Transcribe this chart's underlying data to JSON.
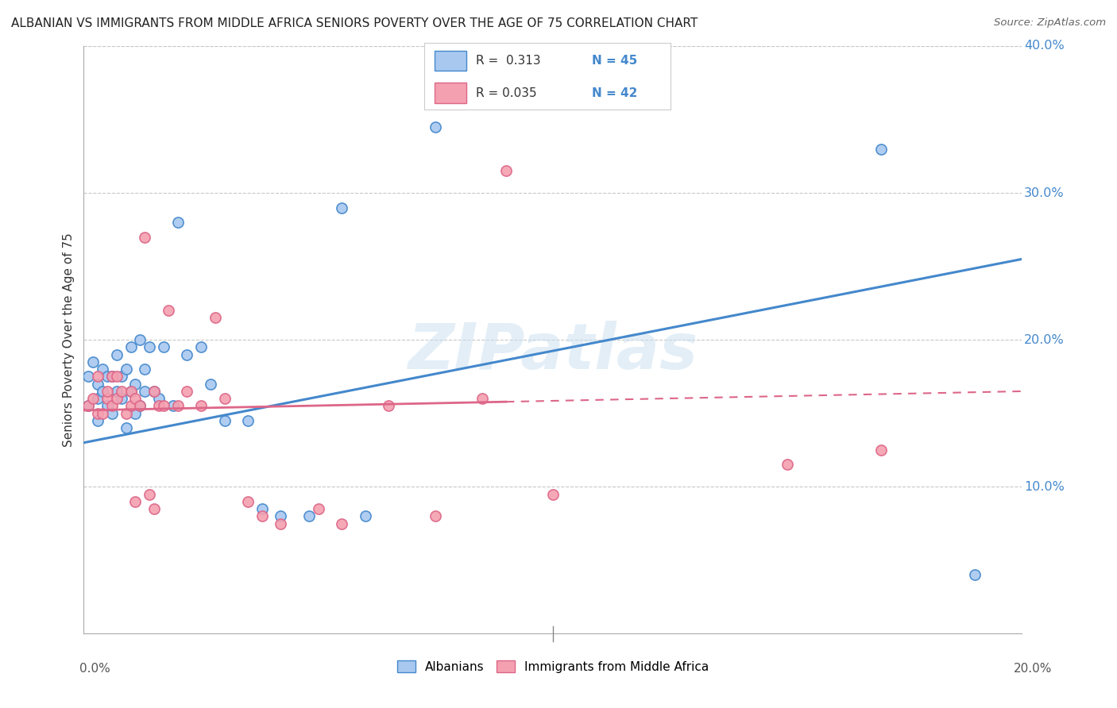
{
  "title": "ALBANIAN VS IMMIGRANTS FROM MIDDLE AFRICA SENIORS POVERTY OVER THE AGE OF 75 CORRELATION CHART",
  "source": "Source: ZipAtlas.com",
  "ylabel": "Seniors Poverty Over the Age of 75",
  "xlim": [
    0.0,
    0.2
  ],
  "ylim": [
    0.0,
    0.4
  ],
  "yticks": [
    0.0,
    0.1,
    0.2,
    0.3,
    0.4
  ],
  "ytick_labels": [
    "",
    "10.0%",
    "20.0%",
    "30.0%",
    "40.0%"
  ],
  "R_albanian": 0.313,
  "N_albanian": 45,
  "R_middle_africa": 0.035,
  "N_middle_africa": 42,
  "color_albanian": "#a8c8f0",
  "color_middle_africa": "#f4a0b0",
  "line_color_albanian": "#4488cc",
  "line_color_middle_africa": "#dd6688",
  "background_color": "#ffffff",
  "grid_color": "#c8c8c8",
  "albanian_scatter_x": [
    0.001,
    0.001,
    0.002,
    0.003,
    0.003,
    0.003,
    0.004,
    0.004,
    0.005,
    0.005,
    0.006,
    0.006,
    0.007,
    0.007,
    0.008,
    0.008,
    0.009,
    0.009,
    0.01,
    0.01,
    0.011,
    0.011,
    0.012,
    0.012,
    0.013,
    0.013,
    0.014,
    0.015,
    0.016,
    0.017,
    0.019,
    0.02,
    0.022,
    0.025,
    0.027,
    0.03,
    0.035,
    0.038,
    0.042,
    0.048,
    0.055,
    0.06,
    0.075,
    0.17,
    0.19
  ],
  "albanian_scatter_y": [
    0.175,
    0.155,
    0.185,
    0.145,
    0.16,
    0.17,
    0.165,
    0.18,
    0.155,
    0.175,
    0.15,
    0.175,
    0.165,
    0.19,
    0.175,
    0.16,
    0.14,
    0.18,
    0.165,
    0.195,
    0.15,
    0.17,
    0.155,
    0.2,
    0.165,
    0.18,
    0.195,
    0.165,
    0.16,
    0.195,
    0.155,
    0.28,
    0.19,
    0.195,
    0.17,
    0.145,
    0.145,
    0.085,
    0.08,
    0.08,
    0.29,
    0.08,
    0.345,
    0.33,
    0.04
  ],
  "middle_africa_scatter_x": [
    0.001,
    0.002,
    0.003,
    0.003,
    0.004,
    0.005,
    0.005,
    0.006,
    0.006,
    0.007,
    0.007,
    0.008,
    0.009,
    0.01,
    0.01,
    0.011,
    0.011,
    0.012,
    0.013,
    0.014,
    0.015,
    0.015,
    0.016,
    0.017,
    0.018,
    0.02,
    0.022,
    0.025,
    0.028,
    0.03,
    0.035,
    0.038,
    0.042,
    0.05,
    0.055,
    0.065,
    0.075,
    0.085,
    0.09,
    0.1,
    0.15,
    0.17
  ],
  "middle_africa_scatter_y": [
    0.155,
    0.16,
    0.15,
    0.175,
    0.15,
    0.16,
    0.165,
    0.155,
    0.175,
    0.16,
    0.175,
    0.165,
    0.15,
    0.155,
    0.165,
    0.16,
    0.09,
    0.155,
    0.27,
    0.095,
    0.085,
    0.165,
    0.155,
    0.155,
    0.22,
    0.155,
    0.165,
    0.155,
    0.215,
    0.16,
    0.09,
    0.08,
    0.075,
    0.085,
    0.075,
    0.155,
    0.08,
    0.16,
    0.315,
    0.095,
    0.115,
    0.125
  ]
}
